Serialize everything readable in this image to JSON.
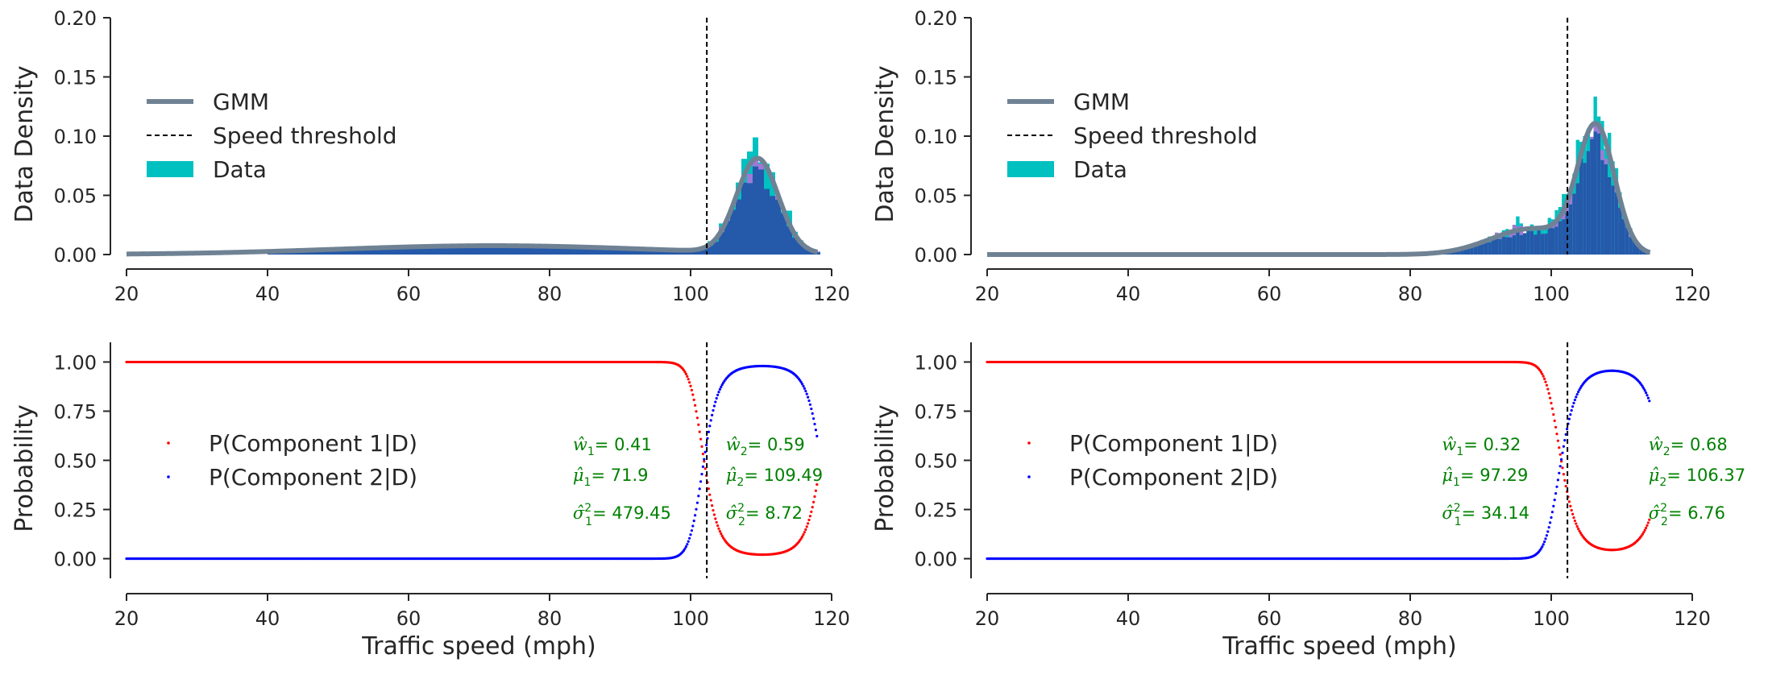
{
  "chart_data": [
    {
      "type": "histogram+line",
      "panel": "top-left",
      "xlim": [
        20,
        120
      ],
      "ylim": [
        0,
        0.2
      ],
      "xticks": [
        "20",
        "40",
        "60",
        "80",
        "100",
        "120"
      ],
      "yticks": [
        "0.00",
        "0.05",
        "0.10",
        "0.15",
        "0.20"
      ],
      "xlabel": "",
      "ylabel": "Data Density",
      "threshold": 102.3,
      "legend": {
        "position": "upper-left",
        "entries": [
          "GMM",
          "Speed threshold",
          "Data"
        ]
      },
      "gmm": {
        "w1": 0.41,
        "mu1": 71.9,
        "var1": 479.45,
        "w2": 0.59,
        "mu2": 109.49,
        "var2": 8.72,
        "x_range": [
          20,
          118
        ]
      },
      "histogram": {
        "range": [
          40,
          118
        ],
        "bin_width": 0.8
      }
    },
    {
      "type": "histogram+line",
      "panel": "top-right",
      "xlim": [
        20,
        120
      ],
      "ylim": [
        0,
        0.2
      ],
      "xticks": [
        "20",
        "40",
        "60",
        "80",
        "100",
        "120"
      ],
      "yticks": [
        "0.00",
        "0.05",
        "0.10",
        "0.15",
        "0.20"
      ],
      "xlabel": "",
      "ylabel": "Data Density",
      "threshold": 102.3,
      "legend": {
        "position": "upper-left",
        "entries": [
          "GMM",
          "Speed threshold",
          "Data"
        ]
      },
      "gmm": {
        "w1": 0.32,
        "mu1": 97.29,
        "var1": 34.14,
        "w2": 0.68,
        "mu2": 106.37,
        "var2": 6.76,
        "x_range": [
          20,
          114
        ]
      },
      "histogram": {
        "range": [
          84,
          114
        ],
        "bin_width": 0.5
      }
    },
    {
      "type": "scatter",
      "panel": "bottom-left",
      "xlim": [
        20,
        120
      ],
      "ylim": [
        -0.1,
        1.1
      ],
      "xticks": [
        "20",
        "40",
        "60",
        "80",
        "100",
        "120"
      ],
      "yticks": [
        "0.00",
        "0.25",
        "0.50",
        "0.75",
        "1.00"
      ],
      "xlabel": "Traffic speed (mph)",
      "ylabel": "Probability",
      "threshold": 102.3,
      "legend": {
        "position": "center-left",
        "entries": [
          "P(Component 1|D)",
          "P(Component 2|D)"
        ]
      },
      "series": [
        {
          "name": "P(Component 1|D)",
          "color": "#ff0000"
        },
        {
          "name": "P(Component 2|D)",
          "color": "#0000ff"
        }
      ],
      "params": {
        "w1": 0.41,
        "mu1": 71.9,
        "var1": 479.45,
        "w2": 0.59,
        "mu2": 109.49,
        "var2": 8.72,
        "x_range": [
          20,
          118
        ]
      },
      "annotations": {
        "w1": "0.41",
        "mu1": "71.9",
        "var1": "479.45",
        "w2": "0.59",
        "mu2": "109.49",
        "var2": "8.72"
      }
    },
    {
      "type": "scatter",
      "panel": "bottom-right",
      "xlim": [
        20,
        120
      ],
      "ylim": [
        -0.1,
        1.1
      ],
      "xticks": [
        "20",
        "40",
        "60",
        "80",
        "100",
        "120"
      ],
      "yticks": [
        "0.00",
        "0.25",
        "0.50",
        "0.75",
        "1.00"
      ],
      "xlabel": "Traffic speed (mph)",
      "ylabel": "Probability",
      "threshold": 102.3,
      "legend": {
        "position": "center-left",
        "entries": [
          "P(Component 1|D)",
          "P(Component 2|D)"
        ]
      },
      "series": [
        {
          "name": "P(Component 1|D)",
          "color": "#ff0000"
        },
        {
          "name": "P(Component 2|D)",
          "color": "#0000ff"
        }
      ],
      "params": {
        "w1": 0.32,
        "mu1": 97.29,
        "var1": 34.14,
        "w2": 0.68,
        "mu2": 106.37,
        "var2": 6.76,
        "x_range": [
          20,
          114
        ]
      },
      "annotations": {
        "w1": "0.32",
        "mu1": "97.29",
        "var1": "34.14",
        "w2": "0.68",
        "mu2": "106.37",
        "var2": "6.76"
      }
    }
  ],
  "colors": {
    "gmm_line": "#6f8294",
    "hist_data": "#00c0c0",
    "hist_blue": "#2850a8",
    "hist_purple": "#a078d8",
    "threshold": "#000000",
    "annotation": "#008000",
    "axis": "#262626"
  }
}
